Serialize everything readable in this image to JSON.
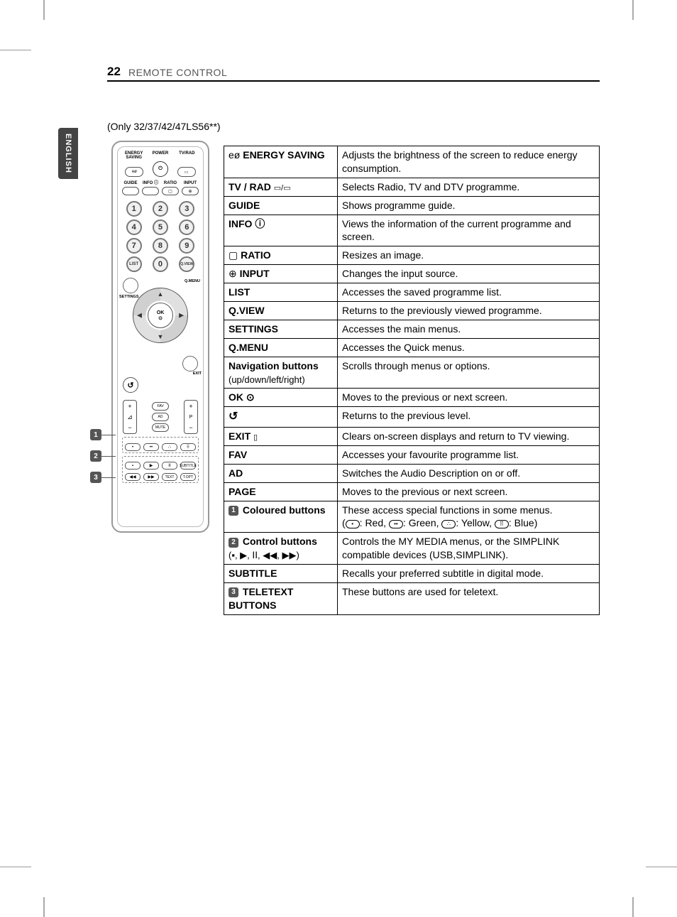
{
  "page_number": "22",
  "section": "REMOTE CONTROL",
  "language_tab": "ENGLISH",
  "only_models": "(Only 32/37/42/47LS56**)",
  "remote": {
    "top_labels": [
      "ENERGY\nSAVING",
      "POWER",
      "TV/RAD"
    ],
    "row2_labels": [
      "GUIDE",
      "INFO ⓘ",
      "RATIO",
      "INPUT"
    ],
    "numpad": [
      "1",
      "2",
      "3",
      "4",
      "5",
      "6",
      "7",
      "8",
      "9",
      "LIST",
      "0",
      "Q.VIEW"
    ],
    "nav_left_label": "SETTINGS",
    "nav_right_label": "Q.MENU",
    "ok_label": "OK",
    "ok_dot": "⊙",
    "exit_label": "EXIT",
    "fav_label": "FAV",
    "ad_label": "AD",
    "mute_label": "MUTE",
    "p_label": "P",
    "subtitle_label": "SUBTITLE",
    "text_label": "TEXT",
    "topt_label": "T.OPT"
  },
  "callouts": {
    "c1": "1",
    "c2": "2",
    "c3": "3"
  },
  "table": [
    {
      "icon": "eø",
      "label": "ENERGY SAVING",
      "desc": "Adjusts the brightness of the screen to reduce energy consumption."
    },
    {
      "label": "TV / RAD",
      "extra_icon": "▭/▭",
      "desc": "Selects Radio, TV and DTV programme."
    },
    {
      "label": "GUIDE",
      "desc": "Shows programme guide."
    },
    {
      "label": "INFO ⓘ",
      "desc": "Views the information of the current programme and screen."
    },
    {
      "icon": "▢",
      "label": "RATIO",
      "desc": "Resizes an image."
    },
    {
      "icon": "⊕",
      "label": "INPUT",
      "desc": "Changes the input source."
    },
    {
      "label": "LIST",
      "desc": "Accesses the saved  programme list."
    },
    {
      "label": "Q.VIEW",
      "desc": "Returns to the previously viewed programme."
    },
    {
      "label": "SETTINGS",
      "desc": "Accesses the main menus."
    },
    {
      "label": "Q.MENU",
      "desc": "Accesses the Quick menus."
    },
    {
      "label": "Navigation buttons",
      "sub": "(up/down/left/right)",
      "desc": "Scrolls through menus or options."
    },
    {
      "label": "OK ⊙",
      "desc": "Moves to the previous or next screen."
    },
    {
      "label_sym": "↺",
      "desc": "Returns to the previous level."
    },
    {
      "label": "EXIT",
      "extra_icon": "▯",
      "desc": "Clears on-screen displays and return to TV viewing."
    },
    {
      "label": "FAV",
      "desc": "Accesses your favourite programme list."
    },
    {
      "label": "AD",
      "desc": "Switches the Audio Description on or off."
    },
    {
      "label": "PAGE",
      "desc": "Moves to the previous or next screen."
    },
    {
      "num": "1",
      "label": "Coloured buttons",
      "desc": "These access special functions in some menus.",
      "desc2_parts": [
        "(",
        ": Red, ",
        ": Green, ",
        ": Yellow, ",
        ": Blue)"
      ],
      "color_icons": [
        "•",
        "••",
        "∴",
        "⠿"
      ]
    },
    {
      "num": "2",
      "label": "Control buttons",
      "sub": "(▪, ▶, ⅠⅠ, ◀◀, ▶▶)",
      "desc": "Controls the MY MEDIA menus, or the SIMPLINK compatible devices (USB,SIMPLINK)."
    },
    {
      "label": "SUBTITLE",
      "desc": "Recalls your preferred subtitle in digital mode."
    },
    {
      "num": "3",
      "label": "TELETEXT BUTTONS",
      "desc": "These buttons are used for teletext."
    }
  ]
}
